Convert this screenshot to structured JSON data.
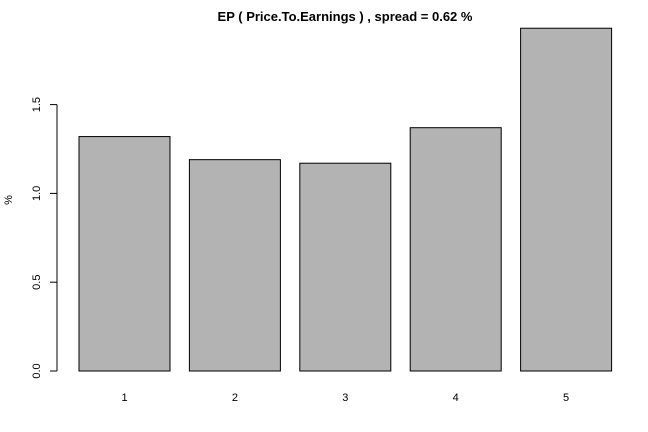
{
  "chart_data": {
    "type": "bar",
    "title": "EP ( Price.To.Earnings ) , spread = 0.62 %",
    "xlabel": "",
    "ylabel": "%",
    "categories": [
      "1",
      "2",
      "3",
      "4",
      "5"
    ],
    "values": [
      1.32,
      1.19,
      1.17,
      1.37,
      1.93
    ],
    "yticks": [
      "0.0",
      "0.5",
      "1.0",
      "1.5"
    ],
    "ylim": [
      0,
      1.93
    ],
    "grid": false,
    "legend": "none",
    "bar_color": "#b3b3b3",
    "bar_border_color": "#000000"
  }
}
